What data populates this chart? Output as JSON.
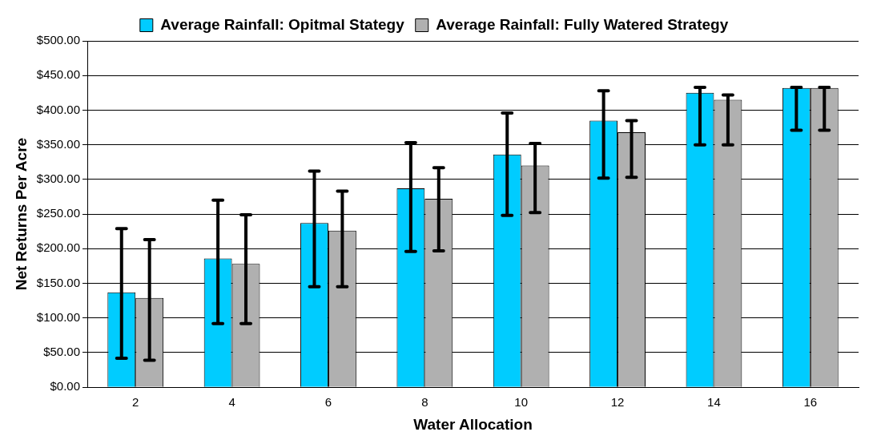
{
  "chart_data": {
    "type": "bar",
    "xlabel": "Water Allocation",
    "ylabel": "Net Returns Per Acre",
    "categories": [
      "2",
      "4",
      "6",
      "8",
      "10",
      "12",
      "14",
      "16"
    ],
    "series": [
      {
        "name": "Average Rainfall: Opitmal Stategy",
        "color": "#00ccff",
        "values": [
          137,
          186,
          237,
          287,
          336,
          385,
          425,
          432
        ],
        "errors": [
          [
            42,
            229
          ],
          [
            92,
            270
          ],
          [
            145,
            312
          ],
          [
            196,
            353
          ],
          [
            248,
            396
          ],
          [
            302,
            428
          ],
          [
            350,
            433
          ],
          [
            371,
            433
          ]
        ]
      },
      {
        "name": "Average Rainfall: Fully Watered Strategy",
        "color": "#b0b0b0",
        "values": [
          129,
          178,
          226,
          272,
          320,
          368,
          415,
          432
        ],
        "errors": [
          [
            39,
            213
          ],
          [
            92,
            249
          ],
          [
            145,
            283
          ],
          [
            197,
            317
          ],
          [
            252,
            352
          ],
          [
            303,
            385
          ],
          [
            350,
            422
          ],
          [
            371,
            433
          ]
        ]
      }
    ],
    "ylim": [
      0,
      500
    ],
    "yticks": [
      {
        "value": 0,
        "label": "$0.00"
      },
      {
        "value": 50,
        "label": "$50.00"
      },
      {
        "value": 100,
        "label": "$100.00"
      },
      {
        "value": 150,
        "label": "$150.00"
      },
      {
        "value": 200,
        "label": "$200.00"
      },
      {
        "value": 250,
        "label": "$250.00"
      },
      {
        "value": 300,
        "label": "$300.00"
      },
      {
        "value": 350,
        "label": "$350.00"
      },
      {
        "value": 400,
        "label": "$400.00"
      },
      {
        "value": 450,
        "label": "$450.00"
      },
      {
        "value": 500,
        "label": "$500.00"
      }
    ],
    "grid": "y",
    "legend": "top"
  }
}
